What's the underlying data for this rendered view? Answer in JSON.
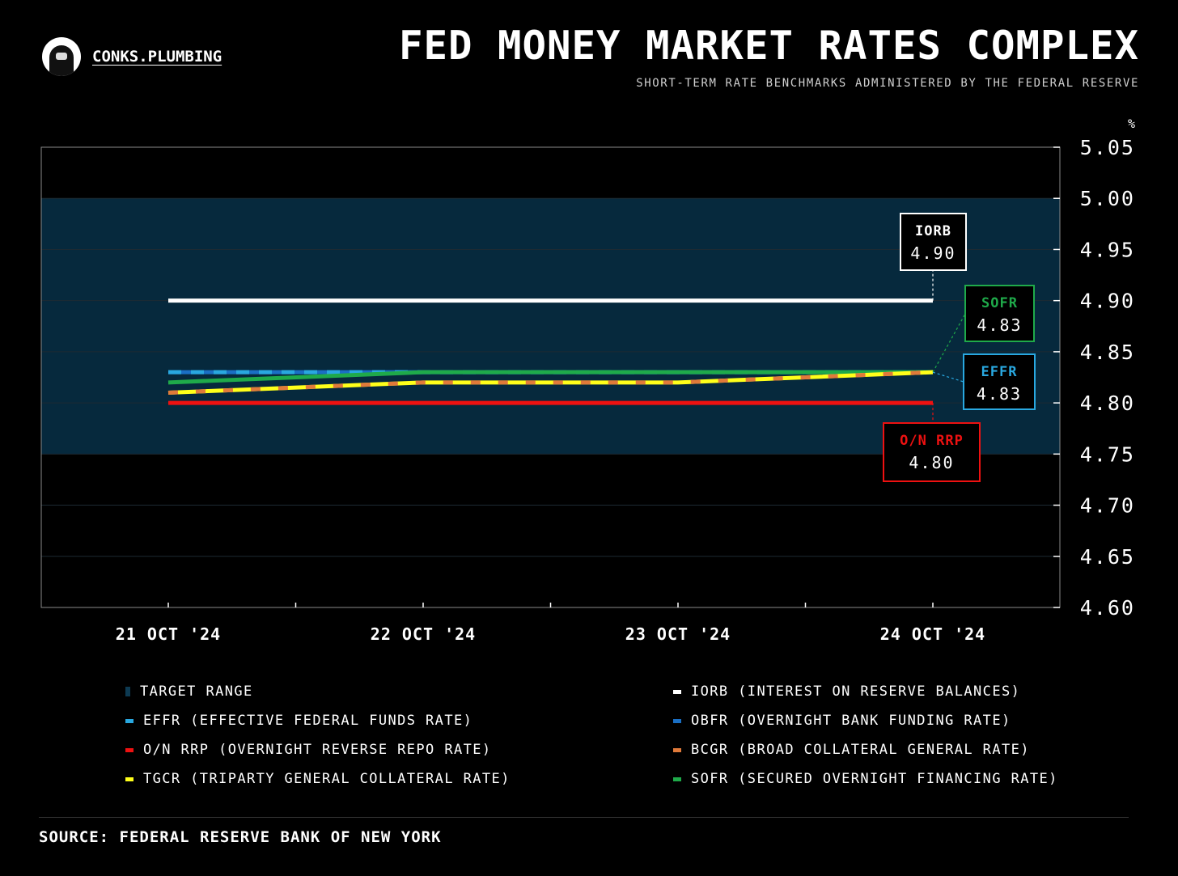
{
  "brand": {
    "name": "CONKS.PLUMBING",
    "logo_icon": "ninja-avatar-icon"
  },
  "header": {
    "title": "FED MONEY MARKET RATES COMPLEX",
    "subtitle": "SHORT-TERM RATE BENCHMARKS ADMINISTERED BY THE FEDERAL RESERVE"
  },
  "footer": {
    "source": "SOURCE: FEDERAL RESERVE BANK OF NEW YORK"
  },
  "chart_data": {
    "type": "line",
    "title": "FED MONEY MARKET RATES COMPLEX",
    "subtitle": "SHORT-TERM RATE BENCHMARKS ADMINISTERED BY THE FEDERAL RESERVE",
    "ylabel": "%",
    "ylim": [
      4.6,
      5.05
    ],
    "yticks": [
      "5.05",
      "5.00",
      "4.95",
      "4.90",
      "4.85",
      "4.80",
      "4.75",
      "4.70",
      "4.65",
      "4.60"
    ],
    "x": [
      "21 OCT '24",
      "22 OCT '24",
      "23 OCT '24",
      "24 OCT '24"
    ],
    "axis_side": "right",
    "grid": true,
    "target_range": {
      "name": "TARGET RANGE",
      "low": 4.75,
      "high": 5.0,
      "color": "#06293d"
    },
    "series": [
      {
        "name": "IORB",
        "values": [
          4.9,
          4.9,
          4.9,
          4.9
        ],
        "color": "#ffffff",
        "style": "solid"
      },
      {
        "name": "OBFR",
        "values": [
          4.83,
          4.83,
          4.83,
          4.83
        ],
        "color": "#1a6fc4",
        "style": "solid"
      },
      {
        "name": "EFFR",
        "values": [
          4.83,
          4.83,
          4.83,
          4.83
        ],
        "color": "#29a8e0",
        "style": "dashed"
      },
      {
        "name": "SOFR",
        "values": [
          4.82,
          4.83,
          4.83,
          4.83
        ],
        "color": "#1faa4a",
        "style": "solid"
      },
      {
        "name": "TGCR",
        "values": [
          4.81,
          4.82,
          4.82,
          4.83
        ],
        "color": "#ffff1a",
        "style": "solid"
      },
      {
        "name": "BCGR",
        "values": [
          4.81,
          4.82,
          4.82,
          4.83
        ],
        "color": "#e07a3a",
        "style": "dashed"
      },
      {
        "name": "O/N RRP",
        "values": [
          4.8,
          4.8,
          4.8,
          4.8
        ],
        "color": "#ee1111",
        "style": "solid"
      }
    ],
    "callouts": [
      {
        "label": "IORB",
        "value": "4.90",
        "color": "#ffffff"
      },
      {
        "label": "SOFR",
        "value": "4.83",
        "color": "#1faa4a"
      },
      {
        "label": "EFFR",
        "value": "4.83",
        "color": "#29a8e0"
      },
      {
        "label": "O/N RRP",
        "value": "4.80",
        "color": "#ee1111"
      }
    ],
    "legend": [
      {
        "label": "TARGET RANGE",
        "color": "#06293d"
      },
      {
        "label": "IORB (INTEREST ON RESERVE BALANCES)",
        "color": "#ffffff"
      },
      {
        "label": "EFFR (EFFECTIVE FEDERAL FUNDS RATE)",
        "color": "#29a8e0"
      },
      {
        "label": "OBFR (OVERNIGHT BANK FUNDING RATE)",
        "color": "#1a6fc4"
      },
      {
        "label": "O/N RRP (OVERNIGHT REVERSE REPO RATE)",
        "color": "#ee1111"
      },
      {
        "label": "BCGR (BROAD COLLATERAL GENERAL RATE)",
        "color": "#e07a3a"
      },
      {
        "label": "TGCR (TRIPARTY GENERAL COLLATERAL RATE)",
        "color": "#ffff1a"
      },
      {
        "label": "SOFR (SECURED OVERNIGHT FINANCING RATE)",
        "color": "#1faa4a"
      }
    ],
    "legend_placement": "bottom"
  }
}
